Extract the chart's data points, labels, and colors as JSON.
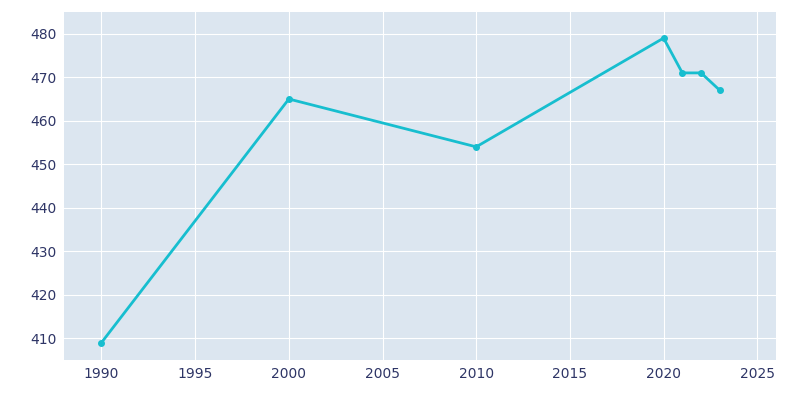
{
  "years": [
    1990,
    2000,
    2010,
    2020,
    2021,
    2022,
    2023
  ],
  "population": [
    409,
    465,
    454,
    479,
    471,
    471,
    467
  ],
  "line_color": "#17becf",
  "bg_color": "#ffffff",
  "plot_bg_color": "#dce6f0",
  "text_color": "#2e3566",
  "xlim": [
    1988,
    2026
  ],
  "ylim": [
    405,
    485
  ],
  "xticks": [
    1990,
    1995,
    2000,
    2005,
    2010,
    2015,
    2020,
    2025
  ],
  "yticks": [
    410,
    420,
    430,
    440,
    450,
    460,
    470,
    480
  ],
  "grid_color": "#ffffff",
  "linewidth": 2.0,
  "marker": "o",
  "markersize": 4
}
